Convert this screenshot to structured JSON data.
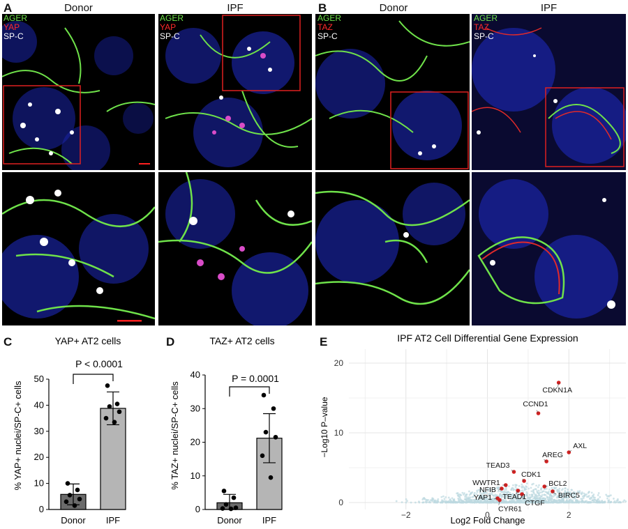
{
  "panels": {
    "A": {
      "label": "A",
      "col1_title": "Donor",
      "col2_title": "IPF",
      "channels": [
        {
          "name": "AGER",
          "color": "#6fe24a"
        },
        {
          "name": "YAP",
          "color": "#ff2a2a"
        },
        {
          "name": "SP-C",
          "color": "#ffffff"
        }
      ]
    },
    "B": {
      "label": "B",
      "col1_title": "Donor",
      "col2_title": "IPF",
      "channels": [
        {
          "name": "AGER",
          "color": "#6fe24a"
        },
        {
          "name": "TAZ",
          "color": "#ff2a2a"
        },
        {
          "name": "SP-C",
          "color": "#ffffff"
        }
      ]
    },
    "C": {
      "label": "C"
    },
    "D": {
      "label": "D"
    },
    "E": {
      "label": "E"
    }
  },
  "chart_data": [
    {
      "type": "bar",
      "title": "YAP+ AT2 cells",
      "ylabel": "% YAP+ nuclei/SP-C+ cells",
      "categories": [
        "Donor",
        "IPF"
      ],
      "values": [
        5.8,
        38.8
      ],
      "error": [
        4.0,
        6.3
      ],
      "points": [
        [
          10.0,
          7.5,
          5.5,
          4.0,
          3.0,
          1.5
        ],
        [
          47.5,
          40.5,
          39.5,
          37.5,
          35.0,
          33.5
        ]
      ],
      "bar_colors": [
        "#6b6b6b",
        "#b5b5b5"
      ],
      "ylim": [
        0,
        50
      ],
      "yticks": [
        0,
        10,
        20,
        30,
        40,
        50
      ],
      "annotation": "P < 0.0001"
    },
    {
      "type": "bar",
      "title": "TAZ+ AT2 cells",
      "ylabel": "% TAZ+ nuclei/SP-C+ cells",
      "categories": [
        "Donor",
        "IPF"
      ],
      "values": [
        2.0,
        21.2
      ],
      "error": [
        2.5,
        7.3
      ],
      "points": [
        [
          5.5,
          3.5,
          1.5,
          0.5,
          0.3,
          0.2
        ],
        [
          34.0,
          30.0,
          23.0,
          21.5,
          16.0,
          9.5
        ]
      ],
      "bar_colors": [
        "#6b6b6b",
        "#b5b5b5"
      ],
      "ylim": [
        0,
        40
      ],
      "yticks": [
        0,
        10,
        20,
        30,
        40
      ],
      "annotation": "P = 0.0001"
    },
    {
      "type": "scatter",
      "title": "IPF AT2 Cell Differential Gene Expression",
      "xlabel": "Log2 Fold Change",
      "ylabel": "−Log10 P–value",
      "xlim": [
        -3.4,
        3.4
      ],
      "ylim": [
        -1,
        22
      ],
      "xticks": [
        -2,
        0,
        2
      ],
      "yticks": [
        0,
        10,
        20
      ],
      "background_color": "#bcd9df",
      "highlight_color": "#d42020",
      "genes": [
        {
          "name": "CDKN1A",
          "x": 1.75,
          "y": 17.2
        },
        {
          "name": "CCND1",
          "x": 1.25,
          "y": 12.8
        },
        {
          "name": "AXL",
          "x": 2.0,
          "y": 7.2
        },
        {
          "name": "AREG",
          "x": 1.45,
          "y": 5.9
        },
        {
          "name": "TEAD3",
          "x": 0.65,
          "y": 4.4
        },
        {
          "name": "CDK1",
          "x": 0.9,
          "y": 3.1
        },
        {
          "name": "WWTR1",
          "x": 0.45,
          "y": 2.5
        },
        {
          "name": "BCL2",
          "x": 1.4,
          "y": 2.3
        },
        {
          "name": "NFIB",
          "x": 0.35,
          "y": 2.0
        },
        {
          "name": "TEAD1",
          "x": 0.75,
          "y": 1.7
        },
        {
          "name": "BIRC5",
          "x": 1.6,
          "y": 1.6
        },
        {
          "name": "CTGF",
          "x": 0.85,
          "y": 1.2
        },
        {
          "name": "YAP1",
          "x": 0.25,
          "y": 0.6
        },
        {
          "name": "CYR61",
          "x": 0.3,
          "y": 0.35
        }
      ]
    }
  ]
}
